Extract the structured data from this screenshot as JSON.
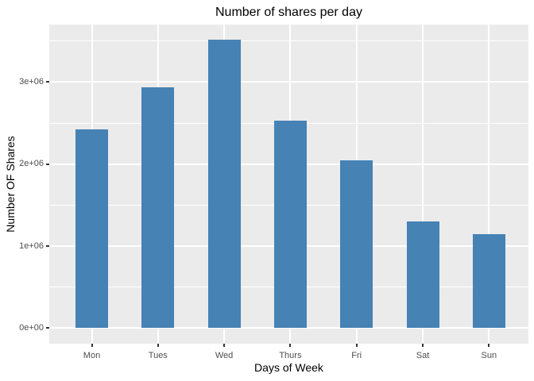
{
  "chart_data": {
    "type": "bar",
    "title": "Number of shares per day",
    "xlabel": "Days of Week",
    "ylabel": "Number OF Shares",
    "categories": [
      "Mon",
      "Tues",
      "Wed",
      "Thurs",
      "Fri",
      "Sat",
      "Sun"
    ],
    "values": [
      2420000,
      2940000,
      3520000,
      2530000,
      2050000,
      1300000,
      1150000
    ],
    "y_ticks": [
      {
        "label": "0e+00",
        "value": 0
      },
      {
        "label": "1e+06",
        "value": 1000000
      },
      {
        "label": "2e+06",
        "value": 2000000
      },
      {
        "label": "3e+06",
        "value": 3000000
      }
    ],
    "y_minor_values": [
      500000,
      1500000,
      2500000,
      3500000
    ],
    "ylim": [
      -190000,
      3700000
    ],
    "grid": true,
    "legend_position": "none",
    "colors": {
      "bar_fill": "#4682B4",
      "panel_background": "#EBEBEB",
      "gridline": "#FFFFFF",
      "tick_label": "#4D4D4D",
      "tick_mark": "#333333",
      "title": "#000000",
      "axis_title": "#000000",
      "page_background": "#FFFFFF"
    }
  }
}
